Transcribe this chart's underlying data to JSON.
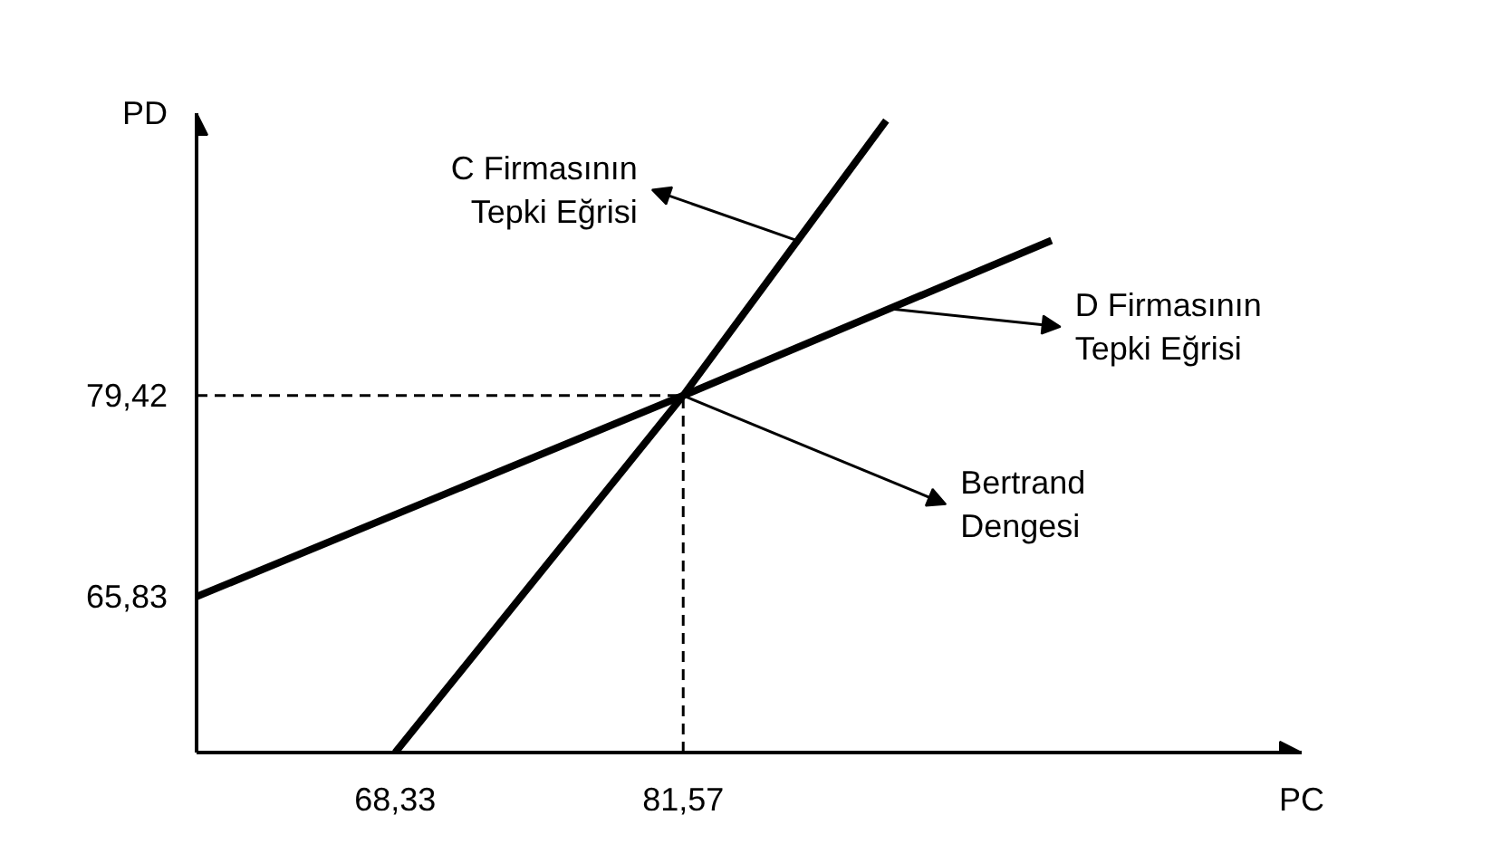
{
  "chart_data": {
    "type": "line",
    "xlabel": "PC",
    "ylabel": "PD",
    "xlim": [
      59.2,
      110.0
    ],
    "ylim": [
      55.3,
      98.5
    ],
    "xticks": [
      {
        "value": 68.33,
        "label": "68,33"
      },
      {
        "value": 81.57,
        "label": "81,57"
      }
    ],
    "yticks": [
      {
        "value": 65.83,
        "label": "65,83"
      },
      {
        "value": 79.42,
        "label": "79,42"
      }
    ],
    "series": [
      {
        "color": "#000000",
        "x": [
          68.33,
          81.57,
          90.9
        ],
        "values": [
          55.3,
          79.42,
          98.0
        ]
      },
      {
        "color": "#000000",
        "x": [
          59.2,
          81.57,
          98.5
        ],
        "values": [
          65.83,
          79.42,
          89.9
        ]
      }
    ],
    "ref_lines": [
      {
        "axis": "x",
        "value": 81.57,
        "color": "#000000",
        "line_style": "dashed"
      },
      {
        "axis": "y",
        "value": 79.42,
        "color": "#000000",
        "line_style": "dashed"
      }
    ],
    "annotations": [
      {
        "text": "C Firmasının\nTepki Eğrisi",
        "x": 86.8,
        "y": 89.9
      },
      {
        "text": "D Firmasının\nTepki Eğrisi",
        "x": 91.0,
        "y": 85.3
      },
      {
        "text": "Bertrand\nDengesi",
        "x": 81.57,
        "y": 79.42
      }
    ],
    "grid": false,
    "marker": "none",
    "line_style": "solid"
  }
}
